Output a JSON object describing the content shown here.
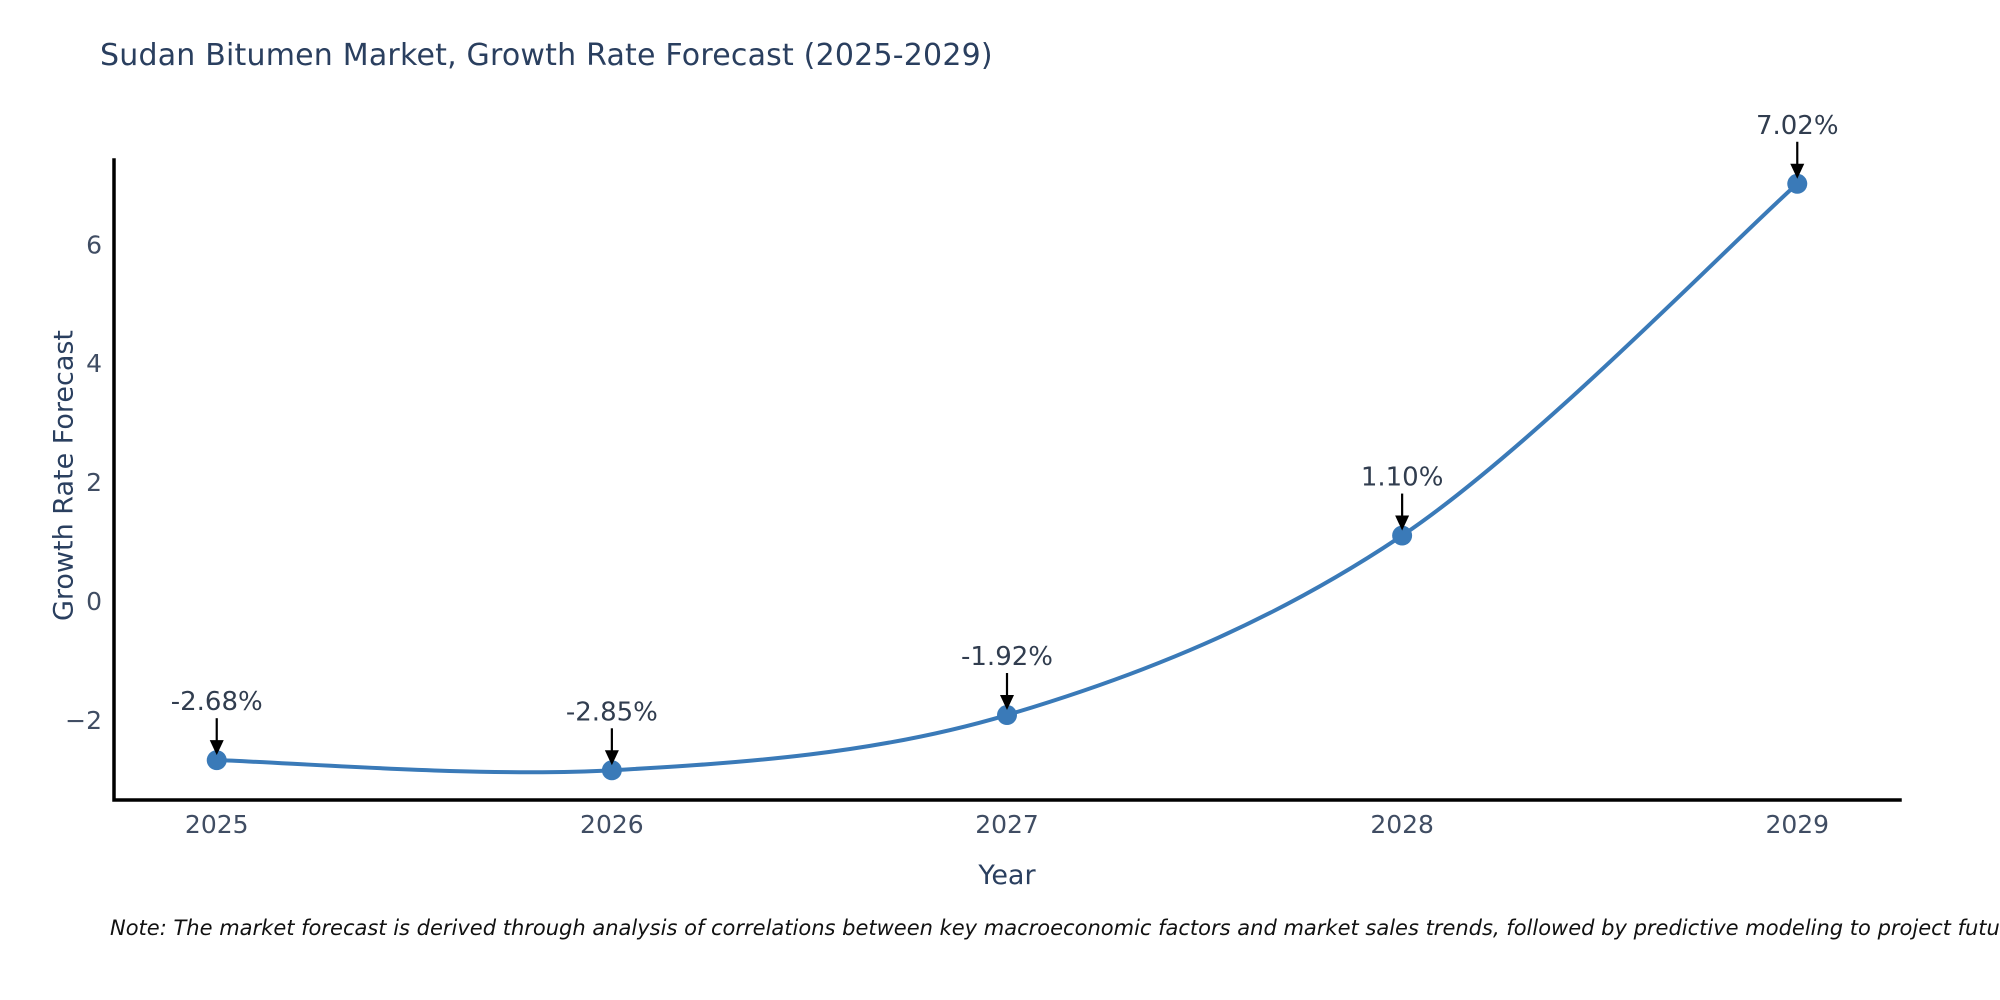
{
  "title": "Sudan Bitumen Market, Growth Rate Forecast (2025-2029)",
  "note": "Note: The market forecast is derived through analysis of correlations between key macroeconomic factors and market sales trends, followed by predictive modeling to project future sales",
  "chart_data": {
    "type": "line",
    "title": "Sudan Bitumen Market, Growth Rate Forecast (2025-2029)",
    "xlabel": "Year",
    "ylabel": "Growth Rate Forecast",
    "x": [
      2025,
      2026,
      2027,
      2028,
      2029
    ],
    "series": [
      {
        "name": "Growth Rate Forecast",
        "values": [
          -2.68,
          -2.85,
          -1.92,
          1.1,
          7.02
        ],
        "point_labels": [
          "-2.68%",
          "-2.85%",
          "-1.92%",
          "1.10%",
          "7.02%"
        ]
      }
    ],
    "xtick_labels": [
      "2025",
      "2026",
      "2027",
      "2028",
      "2029"
    ],
    "yticks": [
      -2,
      0,
      2,
      4,
      6
    ],
    "xlim": [
      2024.74,
      2029.26
    ],
    "ylim": [
      -3.35,
      7.42
    ],
    "grid": false,
    "legend": "none",
    "line_style": "spline",
    "marker": "circle",
    "annotation_arrows": true,
    "colors": {
      "line": "#3a7ab8",
      "marker": "#3a7ab8",
      "axis": "#000000",
      "arrow": "#000000",
      "title": "#2a3f5f",
      "tick": "#404d63",
      "annotation_text": "#313d4f"
    }
  }
}
